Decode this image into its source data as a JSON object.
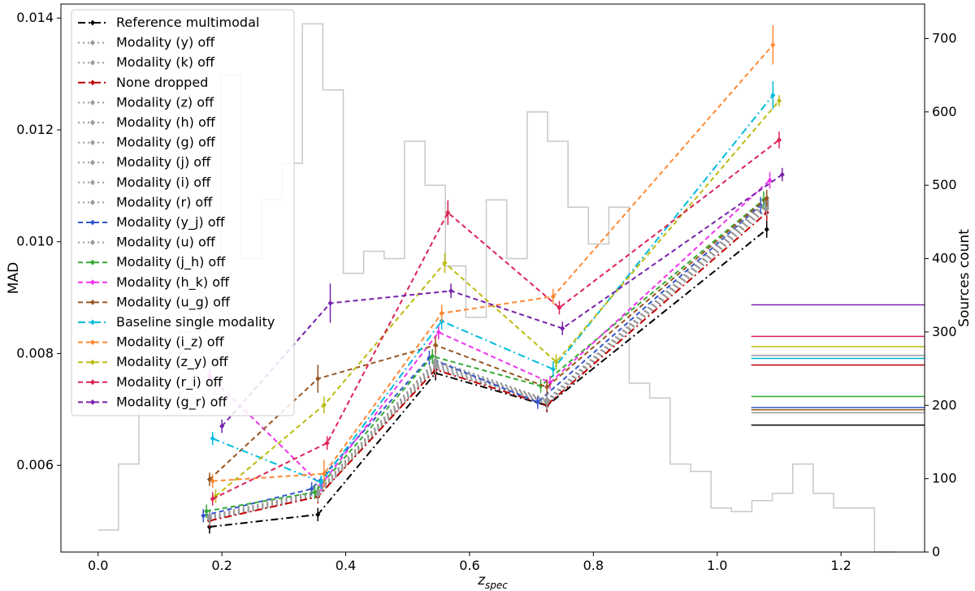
{
  "chart_data": {
    "type": "line",
    "xlabel": "z",
    "xlabel_sub": "spec",
    "ylabel": "MAD",
    "y2label": "Sources count",
    "xlim": [
      -0.06,
      1.335
    ],
    "ylim": [
      0.00445,
      0.01425
    ],
    "y2lim": [
      0,
      747
    ],
    "x_ticks": [
      0.0,
      0.2,
      0.4,
      0.6,
      0.8,
      1.0,
      1.2
    ],
    "x_tick_labels": [
      "0.0",
      "0.2",
      "0.4",
      "0.6",
      "0.8",
      "1.0",
      "1.2"
    ],
    "y_ticks": [
      0.006,
      0.008,
      0.01,
      0.012,
      0.014
    ],
    "y_tick_labels": [
      "0.006",
      "0.008",
      "0.010",
      "0.012",
      "0.014"
    ],
    "y2_ticks": [
      0,
      100,
      200,
      300,
      400,
      500,
      600,
      700
    ],
    "y2_tick_labels": [
      "0",
      "100",
      "200",
      "300",
      "400",
      "500",
      "600",
      "700"
    ],
    "histogram": {
      "color": "#c8c8c8",
      "edges": [
        0.0,
        0.033,
        0.066,
        0.099,
        0.132,
        0.165,
        0.198,
        0.231,
        0.264,
        0.297,
        0.33,
        0.363,
        0.396,
        0.429,
        0.462,
        0.495,
        0.528,
        0.561,
        0.594,
        0.627,
        0.66,
        0.693,
        0.726,
        0.759,
        0.792,
        0.825,
        0.858,
        0.891,
        0.924,
        0.957,
        0.99,
        1.023,
        1.056,
        1.089,
        1.122,
        1.155,
        1.188,
        1.221,
        1.254,
        1.287
      ],
      "counts": [
        30,
        120,
        200,
        250,
        300,
        380,
        650,
        400,
        480,
        530,
        720,
        630,
        380,
        410,
        400,
        560,
        500,
        390,
        320,
        480,
        400,
        600,
        560,
        470,
        420,
        470,
        230,
        210,
        120,
        110,
        60,
        55,
        70,
        80,
        120,
        80,
        60,
        60,
        0
      ]
    },
    "series": [
      {
        "name": "Reference multimodal",
        "color": "#000000",
        "dash": "9,4,2,4",
        "x": [
          0.18,
          0.355,
          0.545,
          0.725,
          1.08
        ],
        "y": [
          0.0049,
          0.00512,
          0.00765,
          0.00707,
          0.01022
        ],
        "err": [
          0.00012,
          0.00012,
          0.00013,
          0.00012,
          0.00015
        ]
      },
      {
        "name": "Modality (y) off",
        "color": "#999999",
        "dash": "2,4",
        "x": [
          0.18,
          0.355,
          0.545,
          0.725,
          1.08
        ],
        "y": [
          0.00502,
          0.00544,
          0.00772,
          0.0071,
          0.01058
        ],
        "err": [
          0.00012,
          0.00012,
          0.00013,
          0.00012,
          0.00015
        ]
      },
      {
        "name": "Modality (k) off",
        "color": "#999999",
        "dash": "2,4",
        "x": [
          0.18,
          0.355,
          0.545,
          0.725,
          1.08
        ],
        "y": [
          0.00503,
          0.00546,
          0.00774,
          0.00711,
          0.0106
        ],
        "err": [
          0.00012,
          0.00012,
          0.00013,
          0.00012,
          0.00015
        ]
      },
      {
        "name": "None dropped",
        "color": "#c00000",
        "dash": "9,4,2,4",
        "x": [
          0.18,
          0.355,
          0.545,
          0.725,
          1.08
        ],
        "y": [
          0.00501,
          0.00544,
          0.00771,
          0.00708,
          0.01052
        ],
        "err": [
          0.00012,
          0.00012,
          0.00013,
          0.00012,
          0.00015
        ]
      },
      {
        "name": "Modality (z) off",
        "color": "#999999",
        "dash": "2,4",
        "x": [
          0.18,
          0.355,
          0.545,
          0.725,
          1.08
        ],
        "y": [
          0.00504,
          0.00547,
          0.00776,
          0.00712,
          0.01062
        ],
        "err": [
          0.00012,
          0.00012,
          0.00013,
          0.00012,
          0.00015
        ]
      },
      {
        "name": "Modality (h) off",
        "color": "#999999",
        "dash": "2,4",
        "x": [
          0.18,
          0.355,
          0.545,
          0.725,
          1.08
        ],
        "y": [
          0.00505,
          0.00548,
          0.00778,
          0.00713,
          0.01064
        ],
        "err": [
          0.00012,
          0.00012,
          0.00013,
          0.00012,
          0.00015
        ]
      },
      {
        "name": "Modality (g) off",
        "color": "#999999",
        "dash": "2,4",
        "x": [
          0.18,
          0.355,
          0.545,
          0.725,
          1.08
        ],
        "y": [
          0.00506,
          0.0055,
          0.0078,
          0.00714,
          0.01066
        ],
        "err": [
          0.00012,
          0.00012,
          0.00013,
          0.00012,
          0.00015
        ]
      },
      {
        "name": "Modality (j) off",
        "color": "#999999",
        "dash": "2,4",
        "x": [
          0.18,
          0.355,
          0.545,
          0.725,
          1.08
        ],
        "y": [
          0.00507,
          0.00551,
          0.00782,
          0.00715,
          0.01068
        ],
        "err": [
          0.00012,
          0.00012,
          0.00013,
          0.00012,
          0.00015
        ]
      },
      {
        "name": "Modality (i) off",
        "color": "#999999",
        "dash": "2,4",
        "x": [
          0.18,
          0.355,
          0.545,
          0.725,
          1.08
        ],
        "y": [
          0.00508,
          0.00552,
          0.00784,
          0.00716,
          0.0107
        ],
        "err": [
          0.00012,
          0.00012,
          0.00013,
          0.00012,
          0.00015
        ]
      },
      {
        "name": "Modality (r) off",
        "color": "#999999",
        "dash": "2,4",
        "x": [
          0.18,
          0.355,
          0.545,
          0.725,
          1.08
        ],
        "y": [
          0.00509,
          0.00553,
          0.00786,
          0.00717,
          0.01072
        ],
        "err": [
          0.00012,
          0.00012,
          0.00013,
          0.00012,
          0.00015
        ]
      },
      {
        "name": "Modality (y_j) off",
        "color": "#3355cc",
        "dash": "6,4",
        "x": [
          0.17,
          0.345,
          0.535,
          0.71,
          1.07
        ],
        "y": [
          0.0051,
          0.00558,
          0.00792,
          0.00713,
          0.01065
        ],
        "err": [
          0.00012,
          0.00012,
          0.00013,
          0.00012,
          0.00015
        ]
      },
      {
        "name": "Modality (u) off",
        "color": "#999999",
        "dash": "2,4",
        "x": [
          0.18,
          0.355,
          0.545,
          0.725,
          1.08
        ],
        "y": [
          0.0051,
          0.00554,
          0.00788,
          0.00718,
          0.01074
        ],
        "err": [
          0.00012,
          0.00012,
          0.00013,
          0.00012,
          0.00015
        ]
      },
      {
        "name": "Modality (j_h) off",
        "color": "#33aa33",
        "dash": "6,4",
        "x": [
          0.175,
          0.35,
          0.54,
          0.715,
          1.075
        ],
        "y": [
          0.00518,
          0.00552,
          0.00795,
          0.00742,
          0.01075
        ],
        "err": [
          0.00012,
          0.00012,
          0.00013,
          0.00012,
          0.00015
        ]
      },
      {
        "name": "Modality (h_k) off",
        "color": "#ee33ee",
        "dash": "6,4",
        "x": [
          0.18,
          0.36,
          0.55,
          0.73,
          1.085
        ],
        "y": [
          0.0076,
          0.00565,
          0.00838,
          0.00748,
          0.0111
        ],
        "err": [
          0.00012,
          0.00012,
          0.00013,
          0.00012,
          0.00015
        ]
      },
      {
        "name": "Modality (u_g) off",
        "color": "#995522",
        "dash": "6,4",
        "x": [
          0.18,
          0.355,
          0.545,
          0.725,
          1.08
        ],
        "y": [
          0.00575,
          0.00755,
          0.00815,
          0.0074,
          0.01078
        ],
        "err": [
          0.00012,
          0.00025,
          0.00015,
          0.00014,
          0.00015
        ]
      },
      {
        "name": "Baseline single modality",
        "color": "#00bbdd",
        "dash": "9,4,2,4",
        "x": [
          0.185,
          0.36,
          0.555,
          0.735,
          1.09
        ],
        "y": [
          0.00648,
          0.0057,
          0.00858,
          0.00772,
          0.01262
        ],
        "err": [
          0.00012,
          0.00012,
          0.00015,
          0.00014,
          0.00025
        ]
      },
      {
        "name": "Modality (i_z) off",
        "color": "#ff8833",
        "dash": "6,4",
        "x": [
          0.185,
          0.365,
          0.555,
          0.735,
          1.09
        ],
        "y": [
          0.00572,
          0.00585,
          0.00872,
          0.00902,
          0.01352
        ],
        "err": [
          0.00012,
          0.00025,
          0.00015,
          0.00014,
          0.00035
        ]
      },
      {
        "name": "Modality (z_y) off",
        "color": "#bbbb11",
        "dash": "6,4",
        "x": [
          0.19,
          0.365,
          0.56,
          0.74,
          1.1
        ],
        "y": [
          0.00545,
          0.00708,
          0.00962,
          0.00785,
          0.01252
        ],
        "err": [
          0.00012,
          0.00015,
          0.00018,
          0.00014,
          0.0001
        ]
      },
      {
        "name": "Modality (r_i) off",
        "color": "#dd2255",
        "dash": "6,4",
        "x": [
          0.185,
          0.37,
          0.565,
          0.745,
          1.1
        ],
        "y": [
          0.0054,
          0.0064,
          0.01052,
          0.00882,
          0.01182
        ],
        "err": [
          0.00012,
          0.00012,
          0.00022,
          0.00012,
          0.00015
        ]
      },
      {
        "name": "Modality (g_r) off",
        "color": "#7722aa",
        "dash": "6,4",
        "x": [
          0.2,
          0.375,
          0.57,
          0.75,
          1.105
        ],
        "y": [
          0.0067,
          0.0089,
          0.00912,
          0.00845,
          0.0112
        ],
        "err": [
          0.00012,
          0.00035,
          0.00013,
          0.00012,
          0.00012
        ]
      }
    ],
    "hlines": [
      {
        "color": "#7722aa",
        "count": 337
      },
      {
        "color": "#dd2255",
        "count": 294
      },
      {
        "color": "#bbbb11",
        "count": 280
      },
      {
        "color": "#999999",
        "count": 268
      },
      {
        "color": "#00bbdd",
        "count": 264
      },
      {
        "color": "#c00000",
        "count": 255
      },
      {
        "color": "#33aa33",
        "count": 212
      },
      {
        "color": "#3355cc",
        "count": 197
      },
      {
        "color": "#995522",
        "count": 194
      },
      {
        "color": "#999999",
        "count": 190
      },
      {
        "color": "#000000",
        "count": 173
      }
    ]
  }
}
